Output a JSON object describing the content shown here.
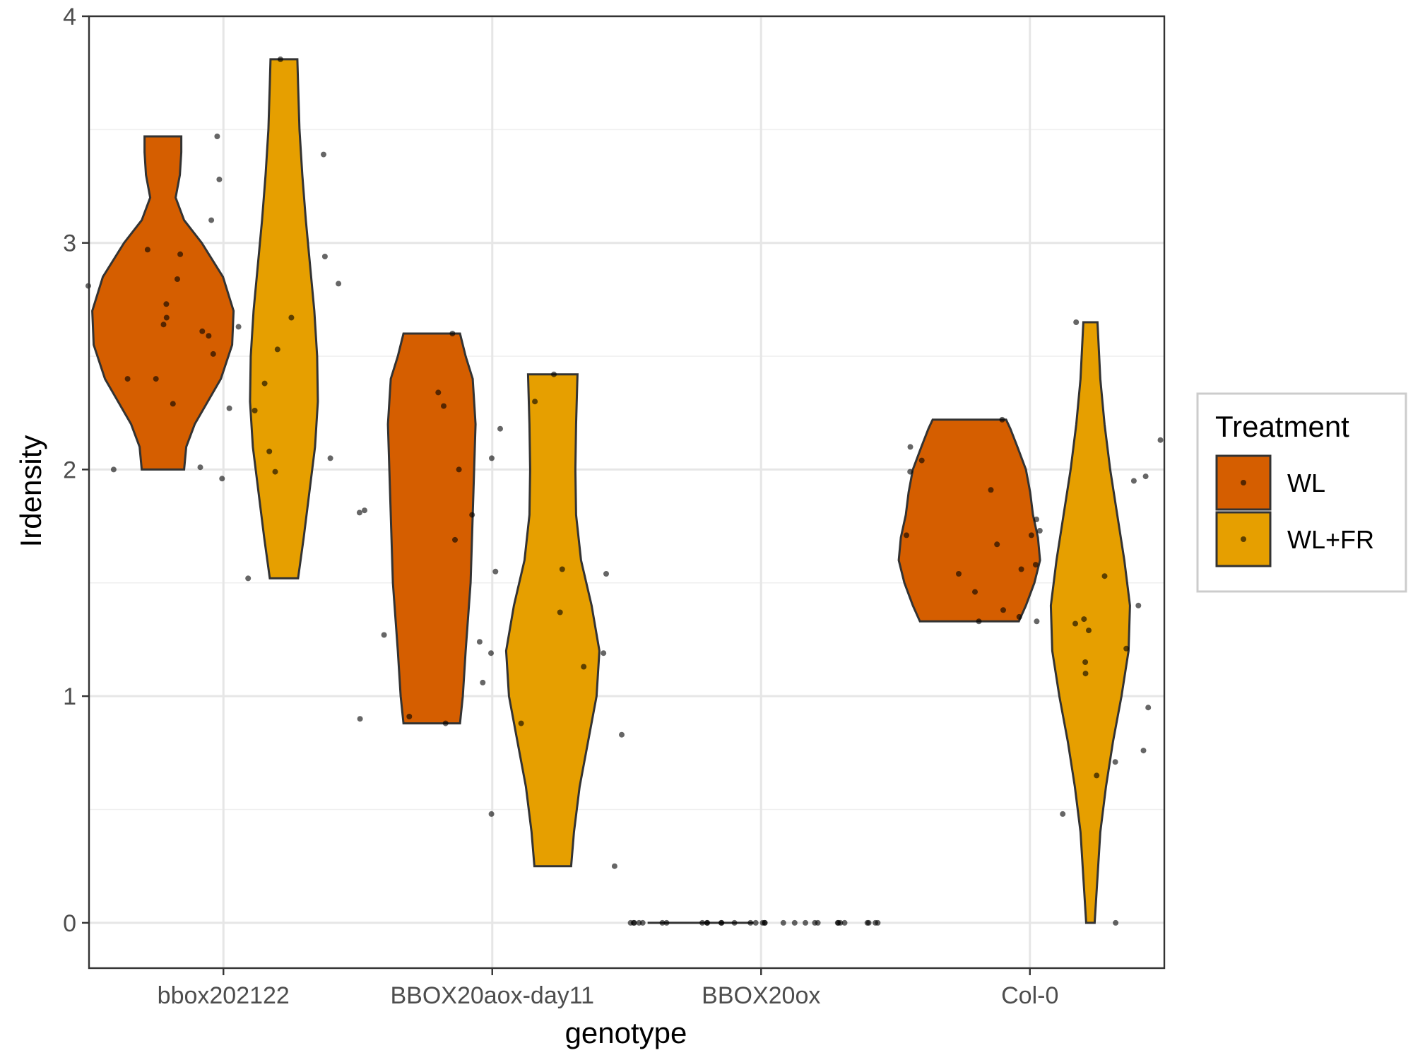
{
  "chart_data": {
    "type": "violin",
    "xlabel": "genotype",
    "ylabel": "Irdensity",
    "ylim": [
      -0.2,
      4
    ],
    "yticks": [
      0,
      1,
      2,
      3,
      4
    ],
    "grid": true,
    "legend_position": "right",
    "legend": {
      "title": "Treatment",
      "entries": [
        {
          "name": "WL",
          "color": "#D55E00"
        },
        {
          "name": "WL+FR",
          "color": "#E69F00"
        }
      ]
    },
    "categories": [
      "bbox202122",
      "BBOX20aox-day11",
      "BBOX20ox",
      "Col-0"
    ],
    "series": [
      {
        "name": "WL",
        "color": "#D55E00",
        "groups": [
          {
            "category": "bbox202122",
            "profile": [
              [
                2.0,
                0.3
              ],
              [
                2.1,
                0.33
              ],
              [
                2.2,
                0.45
              ],
              [
                2.4,
                0.82
              ],
              [
                2.55,
                0.98
              ],
              [
                2.7,
                1.0
              ],
              [
                2.85,
                0.85
              ],
              [
                3.0,
                0.55
              ],
              [
                3.1,
                0.3
              ],
              [
                3.2,
                0.18
              ],
              [
                3.3,
                0.24
              ],
              [
                3.4,
                0.26
              ],
              [
                3.47,
                0.26
              ]
            ],
            "points": [
              2.0,
              2.01,
              2.29,
              2.4,
              2.4,
              2.51,
              2.61,
              2.64,
              2.67,
              2.73,
              2.81,
              2.84,
              2.95,
              2.97,
              3.47
            ]
          },
          {
            "category": "BBOX20aox-day11",
            "profile": [
              [
                0.88,
                0.4
              ],
              [
                1.0,
                0.44
              ],
              [
                1.2,
                0.48
              ],
              [
                1.5,
                0.55
              ],
              [
                1.8,
                0.58
              ],
              [
                2.0,
                0.6
              ],
              [
                2.2,
                0.62
              ],
              [
                2.4,
                0.58
              ],
              [
                2.5,
                0.48
              ],
              [
                2.6,
                0.4
              ]
            ],
            "points": [
              0.88,
              0.9,
              0.91,
              1.19,
              1.27,
              1.55,
              1.69,
              1.8,
              1.82,
              2.0,
              2.18,
              2.28,
              2.34,
              2.6
            ]
          },
          {
            "category": "BBOX20ox",
            "profile": [
              [
                0.0,
                0.75
              ]
            ],
            "points": [
              0,
              0,
              0,
              0,
              0,
              0,
              0,
              0,
              0,
              0,
              0,
              0,
              0,
              0,
              0,
              0
            ]
          },
          {
            "category": "Col-0",
            "profile": [
              [
                1.33,
                0.7
              ],
              [
                1.4,
                0.8
              ],
              [
                1.5,
                0.92
              ],
              [
                1.6,
                1.0
              ],
              [
                1.7,
                0.97
              ],
              [
                1.8,
                0.9
              ],
              [
                1.9,
                0.86
              ],
              [
                2.0,
                0.8
              ],
              [
                2.1,
                0.68
              ],
              [
                2.18,
                0.58
              ],
              [
                2.22,
                0.52
              ]
            ],
            "points": [
              1.33,
              1.33,
              1.38,
              1.46,
              1.54,
              1.56,
              1.67,
              1.71,
              1.73,
              1.78,
              1.91,
              1.99,
              2.04,
              2.1,
              2.22
            ]
          }
        ]
      },
      {
        "name": "WL+FR",
        "color": "#E69F00",
        "groups": [
          {
            "category": "bbox202122",
            "profile": [
              [
                1.52,
                0.2
              ],
              [
                1.7,
                0.28
              ],
              [
                1.9,
                0.36
              ],
              [
                2.1,
                0.44
              ],
              [
                2.3,
                0.48
              ],
              [
                2.5,
                0.47
              ],
              [
                2.7,
                0.43
              ],
              [
                2.9,
                0.37
              ],
              [
                3.1,
                0.31
              ],
              [
                3.3,
                0.26
              ],
              [
                3.5,
                0.22
              ],
              [
                3.7,
                0.2
              ],
              [
                3.81,
                0.19
              ]
            ],
            "points": [
              1.52,
              1.81,
              1.96,
              1.99,
              2.05,
              2.08,
              2.26,
              2.27,
              2.38,
              2.53,
              2.59,
              2.63,
              2.67,
              2.82,
              2.94,
              3.1,
              3.28,
              3.39,
              3.81
            ]
          },
          {
            "category": "BBOX20aox-day11",
            "profile": [
              [
                0.25,
                0.26
              ],
              [
                0.4,
                0.3
              ],
              [
                0.6,
                0.38
              ],
              [
                0.8,
                0.5
              ],
              [
                1.0,
                0.62
              ],
              [
                1.2,
                0.66
              ],
              [
                1.4,
                0.55
              ],
              [
                1.6,
                0.4
              ],
              [
                1.8,
                0.33
              ],
              [
                2.0,
                0.32
              ],
              [
                2.2,
                0.33
              ],
              [
                2.42,
                0.35
              ]
            ],
            "points": [
              0.25,
              0.48,
              0.83,
              0.88,
              1.06,
              1.13,
              1.19,
              1.24,
              1.37,
              1.54,
              1.56,
              2.05,
              2.3,
              2.42
            ]
          },
          {
            "category": "BBOX20ox",
            "profile": [
              [
                0.0,
                0.0
              ]
            ],
            "points": [
              0,
              0,
              0,
              0,
              0,
              0,
              0,
              0,
              0,
              0,
              0,
              0,
              0,
              0,
              0
            ]
          },
          {
            "category": "Col-0",
            "profile": [
              [
                0.0,
                0.06
              ],
              [
                0.2,
                0.1
              ],
              [
                0.4,
                0.14
              ],
              [
                0.6,
                0.22
              ],
              [
                0.8,
                0.32
              ],
              [
                1.0,
                0.44
              ],
              [
                1.2,
                0.54
              ],
              [
                1.4,
                0.56
              ],
              [
                1.6,
                0.48
              ],
              [
                1.8,
                0.38
              ],
              [
                2.0,
                0.28
              ],
              [
                2.2,
                0.2
              ],
              [
                2.4,
                0.14
              ],
              [
                2.65,
                0.1
              ]
            ],
            "points": [
              0,
              0.48,
              0.65,
              0.71,
              0.76,
              0.95,
              1.1,
              1.15,
              1.21,
              1.29,
              1.32,
              1.34,
              1.35,
              1.4,
              1.53,
              1.58,
              1.71,
              1.95,
              1.97,
              2.13,
              2.65
            ]
          }
        ]
      }
    ]
  }
}
